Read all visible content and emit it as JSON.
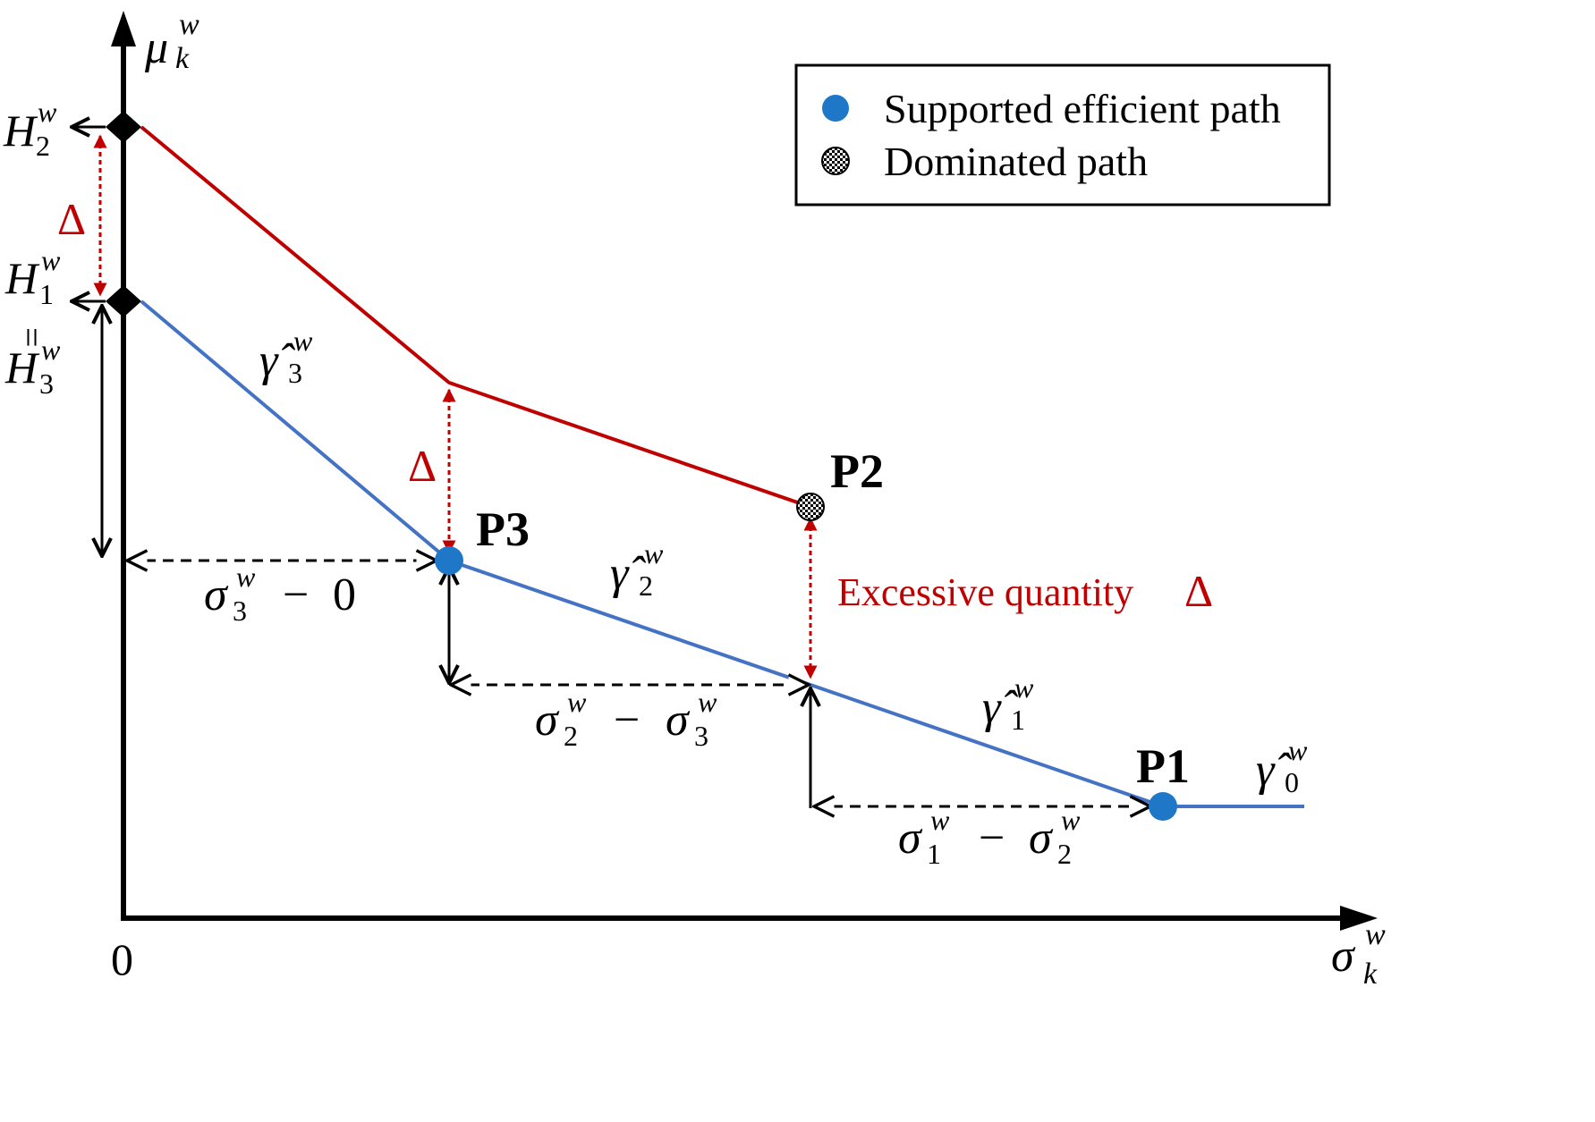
{
  "axes": {
    "x_label": {
      "base": "σ",
      "sup": "w",
      "sub": "k"
    },
    "y_label": {
      "base": "μ",
      "sup": "w",
      "sub": "k"
    },
    "origin_label": "0"
  },
  "legend": {
    "items": [
      {
        "label": "Supported efficient path",
        "marker": "filled-circle",
        "color": "#1f77c8"
      },
      {
        "label": "Dominated path",
        "marker": "checkered-circle",
        "color": "#000000"
      }
    ]
  },
  "points": {
    "p1": {
      "label": "P1"
    },
    "p2": {
      "label": "P2"
    },
    "p3": {
      "label": "P3"
    }
  },
  "y_ticks": {
    "h2": {
      "base": "H",
      "sup": "w",
      "sub": "2"
    },
    "h1": {
      "base": "H",
      "sup": "w",
      "sub": "1"
    },
    "equals": "=",
    "h3": {
      "base": "H",
      "sup": "w",
      "sub": "3"
    }
  },
  "gamma_labels": {
    "g3": {
      "base": "γ̂",
      "sup": "w",
      "sub": "3"
    },
    "g2": {
      "base": "γ̂",
      "sup": "w",
      "sub": "2"
    },
    "g1": {
      "base": "γ̂",
      "sup": "w",
      "sub": "1"
    },
    "g0": {
      "base": "γ̂",
      "sup": "w",
      "sub": "0"
    }
  },
  "sigma_labels": {
    "s3": {
      "a_base": "σ",
      "a_sup": "w",
      "a_sub": "3",
      "op": "−",
      "b": "0"
    },
    "s2": {
      "a_base": "σ",
      "a_sup": "w",
      "a_sub": "2",
      "op": "−",
      "b_base": "σ",
      "b_sup": "w",
      "b_sub": "3"
    },
    "s1": {
      "a_base": "σ",
      "a_sup": "w",
      "a_sub": "1",
      "op": "−",
      "b_base": "σ",
      "b_sup": "w",
      "b_sub": "2"
    }
  },
  "delta_labels": {
    "d1": "Δ",
    "d2": "Δ",
    "excessive_text": "Excessive quantity",
    "excessive_symbol": "Δ"
  },
  "colors": {
    "red_line": "#c00000",
    "blue_line": "#4472c4",
    "point_blue": "#1f77c8",
    "axis": "#000000"
  }
}
